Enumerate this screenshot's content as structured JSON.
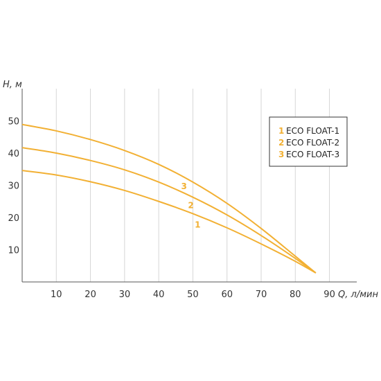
{
  "chart_data": {
    "type": "line",
    "xlabel": "Q, л/мин",
    "ylabel": "H, м",
    "xlim": [
      0,
      98
    ],
    "ylim": [
      0,
      60
    ],
    "xticks": [
      10,
      20,
      30,
      40,
      50,
      60,
      70,
      80,
      90
    ],
    "yticks": [
      10,
      20,
      30,
      40,
      50
    ],
    "grid": "vertical",
    "legend_position": "top-right",
    "line_color": "#f2b033",
    "series": [
      {
        "name": "ECO FLOAT-1",
        "legend_number": "1",
        "curve_label": "1",
        "x": [
          0,
          10,
          20,
          30,
          40,
          50,
          60,
          70,
          80,
          86
        ],
        "y": [
          34.6,
          33.2,
          31.1,
          28.4,
          25.0,
          21.2,
          16.8,
          11.8,
          6.4,
          2.8
        ]
      },
      {
        "name": "ECO FLOAT-2",
        "legend_number": "2",
        "curve_label": "2",
        "x": [
          0,
          10,
          20,
          30,
          40,
          50,
          60,
          70,
          80,
          86
        ],
        "y": [
          41.7,
          40.0,
          37.7,
          34.8,
          31.0,
          26.3,
          20.8,
          14.4,
          7.3,
          2.8
        ]
      },
      {
        "name": "ECO FLOAT-3",
        "legend_number": "3",
        "curve_label": "3",
        "x": [
          0,
          10,
          20,
          30,
          40,
          50,
          60,
          70,
          80,
          86
        ],
        "y": [
          48.9,
          46.9,
          44.2,
          40.8,
          36.5,
          31.0,
          24.4,
          16.6,
          8.0,
          2.8
        ]
      }
    ]
  }
}
